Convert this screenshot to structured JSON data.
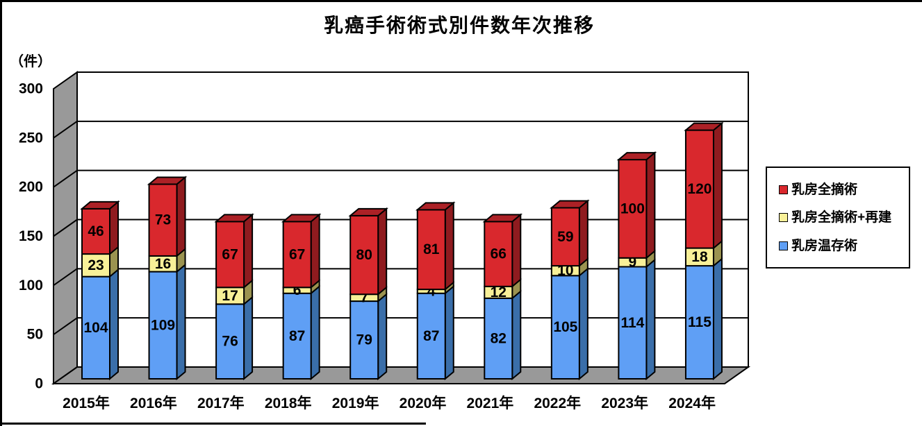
{
  "title": "乳癌手術術式別件数年次推移",
  "y_axis_unit": "（件）",
  "chart_data": {
    "type": "bar",
    "stacked": true,
    "projection": "3d",
    "title": "乳癌手術術式別件数年次推移",
    "ylabel": "（件）",
    "ylim": [
      0,
      300
    ],
    "yticks": [
      0,
      50,
      100,
      150,
      200,
      250,
      300
    ],
    "grid": true,
    "legend_position": "right",
    "categories": [
      "2015年",
      "2016年",
      "2017年",
      "2018年",
      "2019年",
      "2020年",
      "2021年",
      "2022年",
      "2023年",
      "2024年"
    ],
    "series": [
      {
        "name": "乳房温存術",
        "values": [
          104,
          109,
          76,
          87,
          79,
          87,
          82,
          105,
          114,
          115
        ],
        "color": "#5F9FF5",
        "side_color": "#3A6EA9",
        "top_color": "#4C85C9"
      },
      {
        "name": "乳房全摘術+再建",
        "values": [
          23,
          16,
          17,
          6,
          7,
          4,
          12,
          10,
          9,
          18
        ],
        "color": "#F8F098",
        "side_color": "#9B9350",
        "top_color": "#CFC66F"
      },
      {
        "name": "乳房全摘術",
        "values": [
          46,
          73,
          67,
          67,
          80,
          81,
          66,
          59,
          100,
          120
        ],
        "color": "#D9282D",
        "side_color": "#8F1B1F",
        "top_color": "#AC2126"
      }
    ]
  },
  "legend": {
    "items": [
      {
        "label": "乳房全摘術",
        "color": "#D9282D"
      },
      {
        "label": "乳房全摘術+再建",
        "color": "#F8F098"
      },
      {
        "label": "乳房温存術",
        "color": "#5F9FF5"
      }
    ]
  },
  "colors": {
    "wall": "#999999",
    "floor": "#999999",
    "background": "#FFFFFF",
    "line": "#000000"
  }
}
